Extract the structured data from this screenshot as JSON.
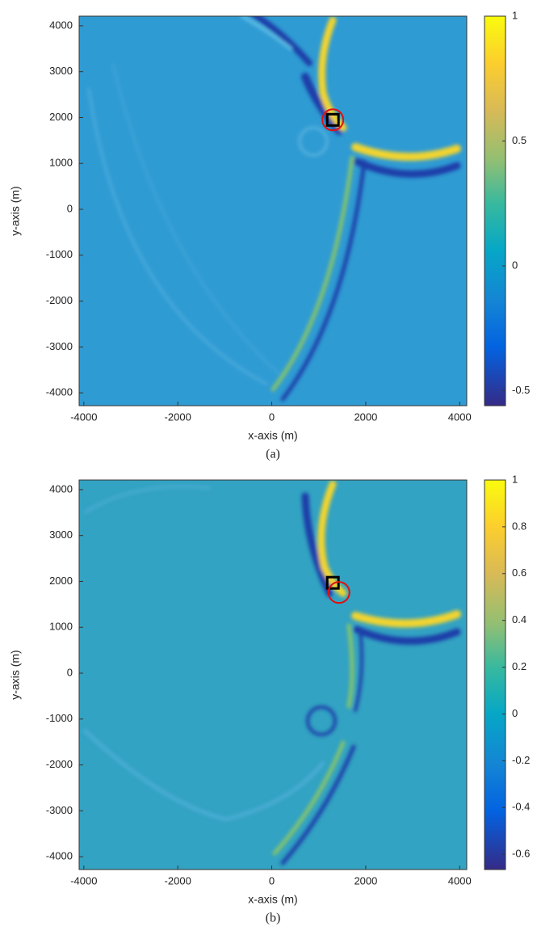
{
  "chart_data": [
    {
      "type": "heatmap",
      "caption": "(a)",
      "xlabel": "x-axis (m)",
      "ylabel": "y-axis (m)",
      "xlim": [
        -4100,
        4150
      ],
      "ylim": [
        -4280,
        4210
      ],
      "xticks": [
        -4000,
        -2000,
        0,
        2000,
        4000
      ],
      "yticks": [
        -4000,
        -3000,
        -2000,
        -1000,
        0,
        1000,
        2000,
        3000,
        4000
      ],
      "colorbar": {
        "clim": [
          -0.56,
          1
        ],
        "ticks": [
          -0.5,
          0,
          0.5,
          1
        ]
      },
      "markers": [
        {
          "shape": "square",
          "x": 1300,
          "y": 1950,
          "color": "#000000"
        },
        {
          "shape": "circle",
          "x": 1300,
          "y": 1950,
          "color": "#e01010"
        }
      ]
    },
    {
      "type": "heatmap",
      "caption": "(b)",
      "xlabel": "x-axis (m)",
      "ylabel": "y-axis (m)",
      "xlim": [
        -4100,
        4150
      ],
      "ylim": [
        -4280,
        4210
      ],
      "xticks": [
        -4000,
        -2000,
        0,
        2000,
        4000
      ],
      "yticks": [
        -4000,
        -3000,
        -2000,
        -1000,
        0,
        1000,
        2000,
        3000,
        4000
      ],
      "colorbar": {
        "clim": [
          -0.665,
          1
        ],
        "ticks": [
          -0.6,
          -0.4,
          -0.2,
          0,
          0.2,
          0.4,
          0.6,
          0.8,
          1
        ]
      },
      "markers": [
        {
          "shape": "square",
          "x": 1300,
          "y": 1970,
          "color": "#000000"
        },
        {
          "shape": "circle",
          "x": 1430,
          "y": 1760,
          "color": "#e01010"
        }
      ]
    }
  ]
}
